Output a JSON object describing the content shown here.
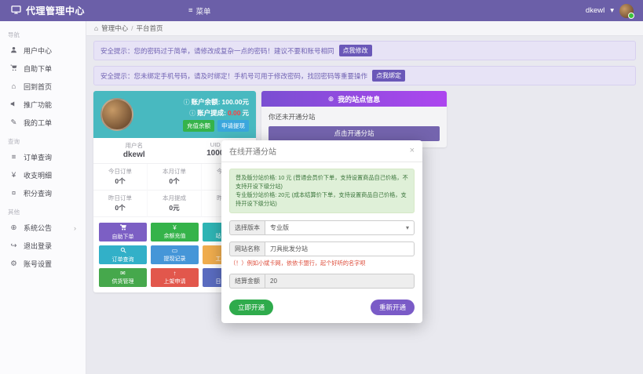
{
  "icons": {
    "menu": "≡",
    "caret": "▾",
    "chevron": "›",
    "close": "×",
    "info": "ⓘ",
    "home": "⌂",
    "globe": "⊕",
    "slash": "/"
  },
  "header": {
    "brand": "代理管理中心",
    "menu_label": "菜单",
    "user": "dkewl"
  },
  "breadcrumb": {
    "root": "管理中心",
    "current": "平台首页"
  },
  "alerts": [
    {
      "text": "安全提示：您的密码过于简单，请修改成复杂一点的密码！建议不要和账号相同",
      "action": "点我修改"
    },
    {
      "text": "安全提示：您未绑定手机号码，请及时绑定！手机号可用于修改密码，找回密码等重要操作",
      "action": "点我绑定"
    }
  ],
  "sidebar": {
    "sections": [
      {
        "title": "导航",
        "items": [
          {
            "icon": "user-icon",
            "label": "用户中心"
          },
          {
            "icon": "cart-icon",
            "label": "自助下单"
          },
          {
            "icon": "home-icon",
            "label": "回到首页"
          },
          {
            "icon": "bullhorn-icon",
            "label": "推广功能"
          },
          {
            "icon": "edit-icon",
            "label": "我的工单"
          }
        ]
      },
      {
        "title": "查询",
        "items": [
          {
            "icon": "list-icon",
            "label": "订单查询"
          },
          {
            "icon": "money-icon",
            "label": "收支明细"
          },
          {
            "icon": "coin-icon",
            "label": "积分查询"
          }
        ]
      },
      {
        "title": "其他",
        "items": [
          {
            "icon": "globe-icon",
            "label": "系统公告",
            "submenu": true
          },
          {
            "icon": "signout-icon",
            "label": "退出登录"
          },
          {
            "icon": "gear-icon",
            "label": "账号设置"
          }
        ]
      }
    ]
  },
  "account_card": {
    "balance_label": "账户余额:",
    "balance_value": "100.00元",
    "commission_label": "账户提成:",
    "commission_value": "0.00",
    "commission_unit": "元",
    "recharge_label": "充值余额",
    "withdraw_label": "申请提现",
    "profile": [
      {
        "label": "用户名",
        "value": "dkewl"
      },
      {
        "label": "UID",
        "value": "1000"
      }
    ],
    "stats": [
      {
        "label": "今日订单",
        "value": "0个"
      },
      {
        "label": "本月订单",
        "value": "0个"
      },
      {
        "label": "今日提成",
        "value": "0元"
      },
      {
        "label": "昨日订单",
        "value": "0个"
      },
      {
        "label": "本月提成",
        "value": "0元"
      },
      {
        "label": "昨日提成",
        "value": "0元"
      }
    ],
    "quick_buttons": [
      {
        "label": "自助下单",
        "icon": "cart-icon",
        "color": "#7c5fc4"
      },
      {
        "label": "余额充值",
        "icon": "money-icon",
        "color": "#35b34a"
      },
      {
        "label": "站点管理",
        "icon": "globe-icon",
        "color": "#2fb5b5"
      },
      {
        "label": "订单查询",
        "icon": "search-icon",
        "color": "#32b0c8"
      },
      {
        "label": "提现记录",
        "icon": "card-icon",
        "color": "#4596d8"
      },
      {
        "label": "工单系统",
        "icon": "ticket-icon",
        "color": "#f0ad4e"
      },
      {
        "label": "供货管理",
        "icon": "comment-icon",
        "color": "#46a84c"
      },
      {
        "label": "上架申请",
        "icon": "upload-icon",
        "color": "#e2574c"
      },
      {
        "label": "日志记录",
        "icon": "file-icon",
        "color": "#5a6cc0"
      }
    ]
  },
  "site_panel": {
    "title": "我的站点信息",
    "empty_text": "你还未开通分站",
    "open_button": "点击开通分站"
  },
  "modal": {
    "title": "在线开通分站",
    "notice": [
      "普及版分站价格: 10 元 (普通会员价下单，支持设置商品自己价格，不支持开设下级分站)",
      "专业版分站价格: 20元 (成本结算价下单，支持设置商品自己价格，支持开设下级分站)"
    ],
    "fields": [
      {
        "label": "选择版本",
        "value": "专业版",
        "type": "select"
      },
      {
        "label": "网站名称",
        "value": "刀具批发分站",
        "type": "text"
      },
      {
        "label": "结算金额",
        "value": "20",
        "type": "readonly"
      }
    ],
    "hint": "（！）例如小斌卡网，依依卡盟行，起个好听的名字呗",
    "submit_label": "立即开通",
    "secondary_label": "重新开通"
  },
  "colors": {
    "brand": "#6b5fa8",
    "accent_teal": "#48b9c0",
    "success": "#35b34a",
    "danger": "#e2574c",
    "panel_gradient_start": "#7a4fd2",
    "panel_gradient_end": "#ad46ef"
  }
}
